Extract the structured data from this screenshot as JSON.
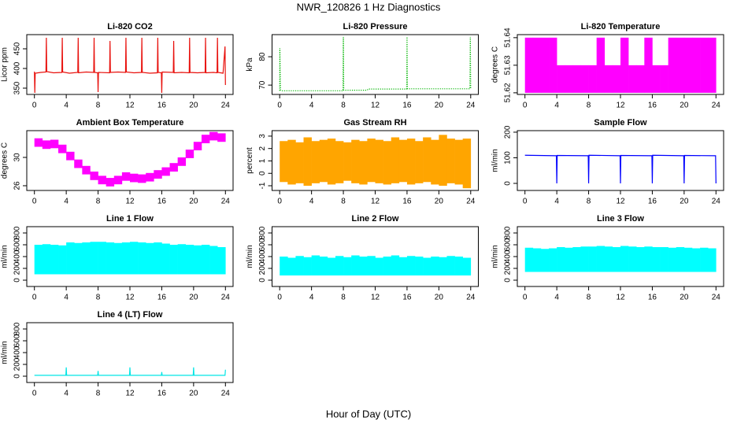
{
  "title": "NWR_120826  1 Hz Diagnostics",
  "xlabel": "Hour of Day (UTC)",
  "chart_data": [
    {
      "type": "line",
      "title": "Li-820 CO2",
      "ylabel": "Licor ppm",
      "color": "#e8100c",
      "x": [
        0,
        0.05,
        0.1,
        0.8,
        1.45,
        1.5,
        1.55,
        2.4,
        3.45,
        3.5,
        3.55,
        4.4,
        5.45,
        5.5,
        5.55,
        6.5,
        7.45,
        7.5,
        7.55,
        7.95,
        8,
        8.05,
        9.45,
        9.5,
        9.55,
        10.5,
        11.45,
        11.5,
        11.55,
        12.5,
        13.45,
        13.5,
        13.55,
        14.5,
        15.45,
        15.5,
        15.55,
        15.95,
        16,
        16.05,
        17.45,
        17.5,
        17.55,
        18.5,
        19.45,
        19.5,
        19.55,
        20.5,
        21.45,
        21.5,
        21.55,
        22.5,
        22.95,
        23,
        23.05,
        23.7,
        23.95,
        24
      ],
      "values": [
        392,
        338,
        388,
        390,
        391,
        478,
        392,
        389,
        390,
        478,
        391,
        388,
        390,
        478,
        389,
        391,
        390,
        478,
        390,
        389,
        340,
        390,
        389,
        470,
        390,
        391,
        390,
        478,
        391,
        389,
        390,
        478,
        390,
        388,
        389,
        478,
        390,
        389,
        338,
        391,
        390,
        470,
        389,
        390,
        389,
        478,
        390,
        389,
        390,
        478,
        389,
        390,
        389,
        478,
        390,
        388,
        456,
        358
      ],
      "xlim": [
        -0.96,
        24.96
      ],
      "xticks": [
        0,
        4,
        8,
        12,
        16,
        20,
        24
      ],
      "ylim": [
        334,
        486
      ],
      "yticks": [
        350,
        400,
        450
      ]
    },
    {
      "type": "line",
      "title": "Li-820 Pressure",
      "ylabel": "kPa",
      "color": "#00b400",
      "line_style": "dotted",
      "x": [
        0,
        0.02,
        0.1,
        0.3,
        4,
        7.95,
        8,
        8.05,
        11,
        11.1,
        15.95,
        16,
        16.05,
        23.9,
        23.95,
        24
      ],
      "values": [
        68,
        83,
        68.3,
        68,
        68,
        68,
        87,
        68.2,
        68.2,
        68.6,
        68.6,
        87,
        68.7,
        68.7,
        87,
        68.8
      ],
      "xlim": [
        -0.96,
        24.96
      ],
      "xticks": [
        0,
        4,
        8,
        12,
        16,
        20,
        24
      ],
      "ylim": [
        66.7,
        87.8
      ],
      "yticks": [
        70,
        80
      ]
    },
    {
      "type": "range",
      "title": "Li-820 Temperature",
      "ylabel": "degrees C",
      "color": "#ff00ff",
      "x": [
        0.5,
        1.5,
        2.5,
        3.5,
        4.5,
        5.5,
        6.5,
        7.5,
        8.5,
        9.5,
        10.5,
        11.5,
        12.5,
        13.5,
        14.5,
        15.5,
        16.5,
        17.5,
        18.5,
        19.5,
        20.5,
        21.5,
        22.5,
        23.5
      ],
      "low": [
        51.62,
        51.62,
        51.62,
        51.62,
        51.62,
        51.62,
        51.62,
        51.62,
        51.62,
        51.62,
        51.62,
        51.62,
        51.62,
        51.62,
        51.62,
        51.62,
        51.62,
        51.62,
        51.62,
        51.62,
        51.62,
        51.62,
        51.62,
        51.62
      ],
      "high": [
        51.64,
        51.64,
        51.64,
        51.64,
        51.63,
        51.63,
        51.63,
        51.63,
        51.63,
        51.64,
        51.63,
        51.63,
        51.64,
        51.63,
        51.63,
        51.64,
        51.63,
        51.63,
        51.64,
        51.64,
        51.64,
        51.64,
        51.64,
        51.64
      ],
      "xlim": [
        -0.96,
        24.96
      ],
      "xticks": [
        0,
        4,
        8,
        12,
        16,
        20,
        24
      ],
      "ylim": [
        51.6194,
        51.6411
      ],
      "yticks": [
        51.62,
        51.63,
        51.64
      ]
    },
    {
      "type": "range",
      "title": "Ambient Box Temperature",
      "ylabel": "degrees C",
      "color": "#ff00ff",
      "x": [
        0.5,
        1.5,
        2.5,
        3.5,
        4.5,
        5.5,
        6.5,
        7.5,
        8.5,
        9.5,
        10.5,
        11.5,
        12.5,
        13.5,
        14.5,
        15.5,
        16.5,
        17.5,
        18.5,
        19.5,
        20.5,
        21.5,
        22.5,
        23.5
      ],
      "low": [
        31.5,
        31.2,
        31.3,
        30.6,
        29.6,
        28.5,
        27.6,
        26.8,
        26.2,
        25.9,
        26.2,
        26.7,
        26.5,
        26.4,
        26.6,
        27.0,
        27.4,
        28.0,
        28.8,
        29.9,
        31.0,
        32.0,
        32.4,
        32.2
      ],
      "high": [
        32.7,
        32.4,
        32.5,
        31.8,
        30.8,
        29.7,
        28.8,
        28.0,
        27.4,
        27.1,
        27.4,
        27.9,
        27.7,
        27.6,
        27.8,
        28.2,
        28.6,
        29.2,
        30.0,
        31.1,
        32.2,
        33.2,
        33.6,
        33.4
      ],
      "xlim": [
        -0.96,
        24.96
      ],
      "xticks": [
        0,
        4,
        8,
        12,
        16,
        20,
        24
      ],
      "ylim": [
        25.33,
        33.78
      ],
      "yticks": [
        26,
        30
      ]
    },
    {
      "type": "range",
      "title": "Gas Stream RH",
      "ylabel": "percent",
      "color": "#ffa500",
      "x": [
        0.5,
        1.5,
        2.5,
        3.5,
        4.5,
        5.5,
        6.5,
        7.5,
        8.5,
        9.5,
        10.5,
        11.5,
        12.5,
        13.5,
        14.5,
        15.5,
        16.5,
        17.5,
        18.5,
        19.5,
        20.5,
        21.5,
        22.5,
        23.5
      ],
      "low": [
        -0.7,
        -0.9,
        -0.8,
        -1.0,
        -0.8,
        -0.7,
        -0.9,
        -0.8,
        -0.6,
        -0.8,
        -0.9,
        -0.7,
        -0.8,
        -0.9,
        -0.8,
        -0.7,
        -0.9,
        -0.8,
        -0.7,
        -0.9,
        -1.0,
        -0.8,
        -0.9,
        -1.2
      ],
      "high": [
        2.6,
        2.7,
        2.5,
        2.9,
        2.6,
        2.7,
        2.8,
        2.6,
        2.5,
        2.7,
        2.6,
        2.8,
        2.7,
        2.6,
        2.9,
        2.7,
        2.8,
        2.6,
        2.9,
        2.7,
        3.1,
        2.8,
        2.7,
        2.8
      ],
      "xlim": [
        -0.96,
        24.96
      ],
      "xticks": [
        0,
        4,
        8,
        12,
        16,
        20,
        24
      ],
      "ylim": [
        -1.38,
        3.44
      ],
      "yticks": [
        -1,
        0,
        1,
        2,
        3
      ]
    },
    {
      "type": "line",
      "title": "Sample Flow",
      "ylabel": "ml/min",
      "color": "#0000ff",
      "x": [
        0,
        3.95,
        4,
        4.05,
        7.95,
        8,
        8.05,
        11.95,
        12,
        12.05,
        15.95,
        16,
        16.05,
        19.95,
        20,
        20.05,
        23.95,
        24
      ],
      "values": [
        110,
        108,
        0,
        109,
        108,
        0,
        110,
        108,
        0,
        109,
        108,
        0,
        110,
        108,
        0,
        109,
        108,
        0
      ],
      "xlim": [
        -0.96,
        24.96
      ],
      "xticks": [
        0,
        4,
        8,
        12,
        16,
        20,
        24
      ],
      "ylim": [
        -27.7,
        206
      ],
      "yticks": [
        0,
        100,
        200
      ]
    },
    {
      "type": "range",
      "title": "Line 1 Flow",
      "ylabel": "ml/min",
      "color": "#00ffff",
      "x": [
        0.5,
        1.5,
        2.5,
        3.5,
        4.5,
        5.5,
        6.5,
        7.5,
        8.5,
        9.5,
        10.5,
        11.5,
        12.5,
        13.5,
        14.5,
        15.5,
        16.5,
        17.5,
        18.5,
        19.5,
        20.5,
        21.5,
        22.5,
        23.5
      ],
      "low": [
        100,
        100,
        100,
        100,
        100,
        100,
        100,
        100,
        100,
        100,
        100,
        100,
        100,
        100,
        100,
        100,
        100,
        100,
        100,
        100,
        100,
        100,
        100,
        100
      ],
      "high": [
        600,
        610,
        600,
        590,
        640,
        630,
        640,
        650,
        650,
        640,
        630,
        640,
        650,
        640,
        630,
        640,
        620,
        600,
        610,
        600,
        590,
        600,
        580,
        560
      ],
      "xlim": [
        -0.96,
        24.96
      ],
      "xticks": [
        0,
        4,
        8,
        12,
        16,
        20,
        24
      ],
      "ylim": [
        -106.7,
        906.7
      ],
      "yticks": [
        0,
        200,
        400,
        600,
        800
      ]
    },
    {
      "type": "range",
      "title": "Line 2 Flow",
      "ylabel": "ml/min",
      "color": "#00ffff",
      "x": [
        0.5,
        1.5,
        2.5,
        3.5,
        4.5,
        5.5,
        6.5,
        7.5,
        8.5,
        9.5,
        10.5,
        11.5,
        12.5,
        13.5,
        14.5,
        15.5,
        16.5,
        17.5,
        18.5,
        19.5,
        20.5,
        21.5,
        22.5,
        23.5
      ],
      "low": [
        80,
        80,
        80,
        80,
        80,
        80,
        80,
        80,
        80,
        80,
        80,
        80,
        80,
        80,
        80,
        80,
        80,
        80,
        80,
        80,
        80,
        80,
        80,
        80
      ],
      "high": [
        400,
        380,
        410,
        390,
        420,
        400,
        380,
        410,
        390,
        420,
        400,
        410,
        380,
        400,
        420,
        390,
        410,
        400,
        380,
        400,
        390,
        410,
        400,
        380
      ],
      "xlim": [
        -0.96,
        24.96
      ],
      "xticks": [
        0,
        4,
        8,
        12,
        16,
        20,
        24
      ],
      "ylim": [
        -106.7,
        906.7
      ],
      "yticks": [
        0,
        200,
        400,
        600,
        800
      ]
    },
    {
      "type": "range",
      "title": "Line 3 Flow",
      "ylabel": "ml/min",
      "color": "#00ffff",
      "x": [
        0.5,
        1.5,
        2.5,
        3.5,
        4.5,
        5.5,
        6.5,
        7.5,
        8.5,
        9.5,
        10.5,
        11.5,
        12.5,
        13.5,
        14.5,
        15.5,
        16.5,
        17.5,
        18.5,
        19.5,
        20.5,
        21.5,
        22.5,
        23.5
      ],
      "low": [
        140,
        140,
        140,
        140,
        140,
        140,
        140,
        140,
        140,
        140,
        140,
        140,
        140,
        140,
        140,
        140,
        140,
        140,
        140,
        140,
        140,
        140,
        140,
        140
      ],
      "high": [
        550,
        540,
        530,
        540,
        560,
        550,
        560,
        570,
        570,
        580,
        570,
        560,
        580,
        570,
        560,
        570,
        560,
        560,
        550,
        560,
        550,
        540,
        550,
        540
      ],
      "xlim": [
        -0.96,
        24.96
      ],
      "xticks": [
        0,
        4,
        8,
        12,
        16,
        20,
        24
      ],
      "ylim": [
        -106.7,
        906.7
      ],
      "yticks": [
        0,
        200,
        400,
        600,
        800
      ]
    },
    {
      "type": "line",
      "title": "Line 4 (LT) Flow",
      "ylabel": "ml/min",
      "color": "#00e5e5",
      "x": [
        0,
        3.95,
        4,
        4.05,
        7.95,
        8,
        8.05,
        11.95,
        12,
        12.05,
        15.95,
        16,
        16.05,
        19.95,
        20,
        20.05,
        23.95,
        24
      ],
      "values": [
        15,
        15,
        150,
        15,
        15,
        90,
        15,
        15,
        150,
        15,
        15,
        70,
        15,
        15,
        150,
        15,
        15,
        110
      ],
      "xlim": [
        -0.96,
        24.96
      ],
      "xticks": [
        0,
        4,
        8,
        12,
        16,
        20,
        24
      ],
      "ylim": [
        -106.7,
        906.7
      ],
      "yticks": [
        0,
        200,
        400,
        600,
        800
      ]
    }
  ]
}
